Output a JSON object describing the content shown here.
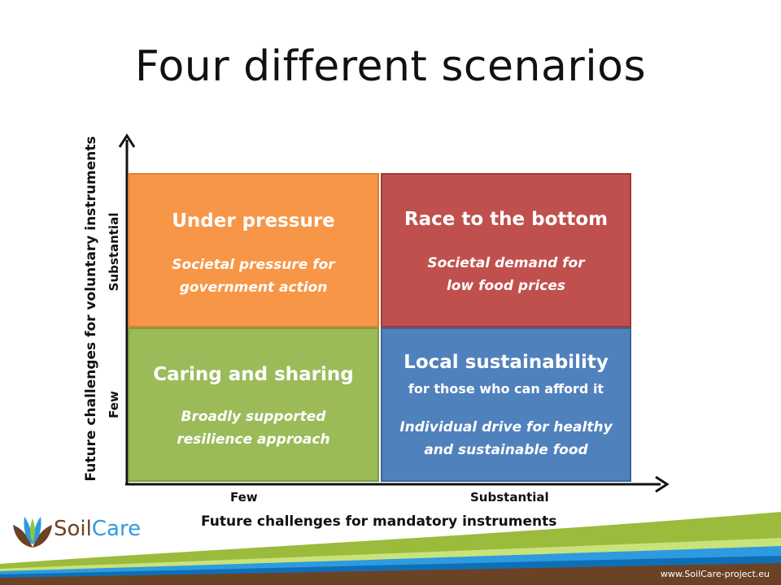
{
  "slide": {
    "title": "Four different scenarios"
  },
  "quadrants": {
    "top_left": {
      "title": "Under pressure",
      "desc_line1": "Societal pressure  for",
      "desc_line2": "government action",
      "color": "#f79646"
    },
    "top_right": {
      "title": "Race to the bottom",
      "desc_line1": "Societal demand for",
      "desc_line2": "low food prices",
      "color": "#c0504d"
    },
    "bottom_left": {
      "title": "Caring and sharing",
      "desc_line1": "Broadly supported",
      "desc_line2": "resilience approach",
      "color": "#9bbb59"
    },
    "bottom_right": {
      "title": "Local sustainability",
      "subtitle": "for those who can afford it",
      "desc_line1": "Individual drive for healthy",
      "desc_line2": "and sustainable food",
      "color": "#4f81bd"
    }
  },
  "axes": {
    "x_title": "Future challenges for mandatory instruments",
    "x_low": "Few",
    "x_high": "Substantial",
    "y_title": "Future challenges for voluntary instruments",
    "y_low": "Few",
    "y_high": "Substantial"
  },
  "footer": {
    "logo_part1": "Soil",
    "logo_part2": "Care",
    "url": "www.SoilCare-project.eu"
  }
}
